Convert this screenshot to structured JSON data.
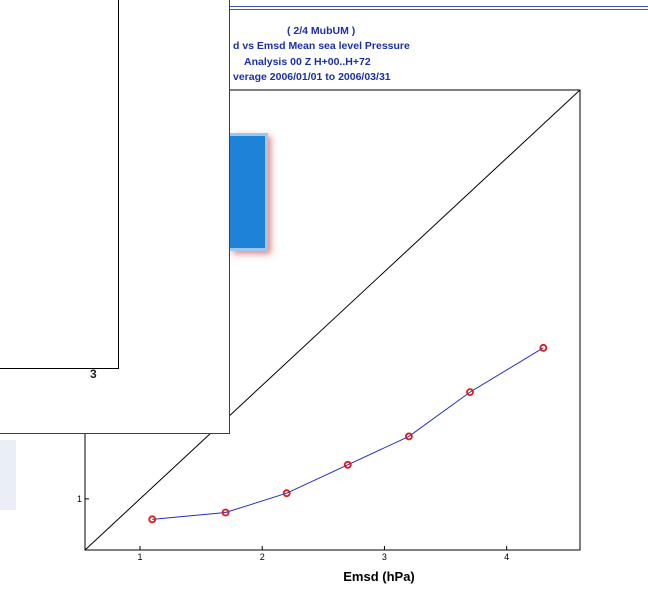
{
  "title_lines": [
    "( 2/4 MubUM )",
    "d vs Emsd  Mean sea level Pressure",
    "Analysis 00 Z  H+00..H+72",
    "verage 2006/01/01 to 2006/03/31"
  ],
  "front_panel": {
    "tick_label": "3"
  },
  "colors": {
    "series_line": "#1f2fc8",
    "marker": "#e01818",
    "title": "#1a2fb0",
    "accent_box": "#1e82d8"
  },
  "chart_data": {
    "type": "line",
    "title": "",
    "xlabel": "Emsd (hPa)",
    "ylabel": "",
    "xlim": [
      0.55,
      4.6
    ],
    "ylim": [
      0.55,
      4.6
    ],
    "x_ticks": [
      1,
      2,
      3,
      4
    ],
    "y_ticks": [
      1
    ],
    "diagonal": true,
    "grid": false,
    "series": [
      {
        "x": [
          1.1,
          1.7,
          2.2,
          2.7,
          3.2,
          3.7,
          4.3
        ],
        "y": [
          0.82,
          0.88,
          1.05,
          1.3,
          1.55,
          1.94,
          2.33
        ]
      }
    ]
  }
}
